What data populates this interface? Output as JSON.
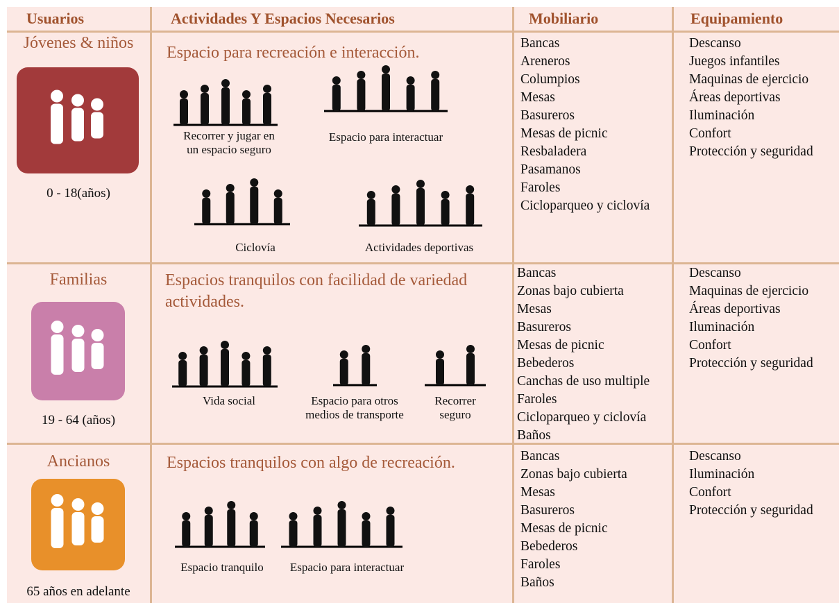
{
  "header": [
    "Usuarios",
    "Actividades Y Espacios Necesarios",
    "Mobiliario",
    "Equipamiento"
  ],
  "rows": [
    {
      "user": {
        "name": "Jóvenes & niños",
        "age": "0 - 18(años)"
      },
      "activity": {
        "title": "Espacio para recreación e interacción.",
        "items": [
          "Recorrer y jugar en\nun espacio seguro",
          "Espacio para interactuar",
          "Ciclovía",
          "Actividades deportivas"
        ]
      },
      "mobiliario": [
        "Bancas",
        "Areneros",
        "Columpios",
        "Mesas",
        "Basureros",
        "Mesas de picnic",
        "Resbaladera",
        "Pasamanos",
        "Faroles",
        "Cicloparqueo y ciclovía"
      ],
      "equipamiento": [
        "Descanso",
        "Juegos infantiles",
        "Maquinas de ejercicio",
        "Áreas deportivas",
        "Iluminación",
        "Confort",
        "Protección y seguridad"
      ]
    },
    {
      "user": {
        "name": "Familias",
        "age": "19 - 64 (años)"
      },
      "activity": {
        "title": "Espacios tranquilos con facilidad de variedad actividades.",
        "items": [
          "Vida social",
          "Espacio para otros\nmedios de transporte",
          "Recorrer\nseguro"
        ]
      },
      "mobiliario": [
        "Bancas",
        "Zonas bajo cubierta",
        "Mesas",
        "Basureros",
        "Mesas de picnic",
        "Bebederos",
        "Canchas de uso multiple",
        "Faroles",
        "Cicloparqueo y ciclovía",
        "Baños"
      ],
      "equipamiento": [
        "Descanso",
        "Maquinas de ejercicio",
        "Áreas deportivas",
        "Iluminación",
        "Confort",
        "Protección y seguridad"
      ]
    },
    {
      "user": {
        "name": "Ancianos",
        "age": "65 años en adelante"
      },
      "activity": {
        "title": "Espacios tranquilos con algo de recreación.",
        "items": [
          "Espacio tranquilo",
          "Espacio para interactuar"
        ]
      },
      "mobiliario": [
        "Bancas",
        "Zonas bajo cubierta",
        "Mesas",
        "Basureros",
        "Mesas de picnic",
        "Bebederos",
        "Faroles",
        "Baños"
      ],
      "equipamiento": [
        "Descanso",
        "Iluminación",
        "Confort",
        "Protección y seguridad"
      ]
    }
  ]
}
